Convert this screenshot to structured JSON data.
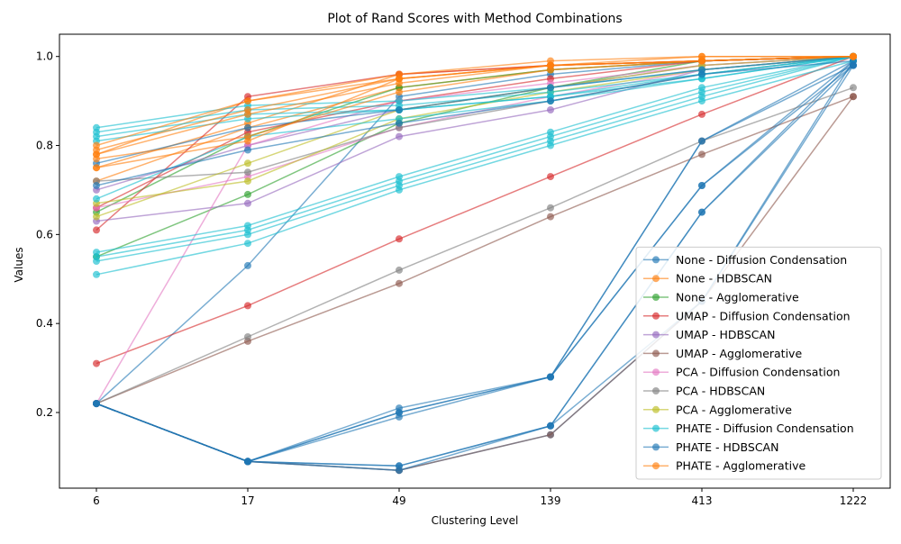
{
  "chart_data": {
    "type": "line",
    "title": "Plot of Rand Scores with Method Combinations",
    "xlabel": "Clustering Level",
    "ylabel": "Values",
    "x": [
      "6",
      "17",
      "49",
      "139",
      "413",
      "1222"
    ],
    "ylim": [
      0.03,
      1.05
    ],
    "yticks": [
      0.2,
      0.4,
      0.6,
      0.8,
      1.0
    ],
    "ytick_labels": [
      "0.2",
      "0.4",
      "0.6",
      "0.8",
      "1.0"
    ],
    "grid": false,
    "legend_position": "lower-right",
    "series": [
      {
        "name": "None - Diffusion Condensation",
        "color": "#1f77b4",
        "runs": [
          [
            0.22,
            0.09,
            0.2,
            0.28,
            0.81,
            0.99
          ],
          [
            0.22,
            0.09,
            0.2,
            0.28,
            0.71,
            0.99
          ],
          [
            0.22,
            0.09,
            0.08,
            0.17,
            0.65,
            0.99
          ],
          [
            0.22,
            0.09,
            0.07,
            0.15,
            0.45,
            0.99
          ],
          [
            0.22,
            0.53,
            0.91,
            0.96,
            0.99,
            1.0
          ]
        ]
      },
      {
        "name": "None - HDBSCAN",
        "color": "#ff7f0e",
        "runs": [
          [
            0.75,
            0.85,
            0.96,
            0.98,
            0.99,
            1.0
          ],
          [
            0.78,
            0.9,
            0.95,
            0.98,
            0.99,
            1.0
          ],
          [
            0.72,
            0.84,
            0.93,
            0.97,
            0.99,
            1.0
          ]
        ]
      },
      {
        "name": "None - Agglomerative",
        "color": "#2ca02c",
        "runs": [
          [
            0.55,
            0.69,
            0.85,
            0.93,
            0.99,
            1.0
          ],
          [
            0.65,
            0.82,
            0.93,
            0.97,
            0.99,
            1.0
          ]
        ]
      },
      {
        "name": "UMAP - Diffusion Condensation",
        "color": "#d62728",
        "runs": [
          [
            0.31,
            0.44,
            0.59,
            0.73,
            0.87,
            1.0
          ],
          [
            0.61,
            0.91,
            0.96,
            0.98,
            0.99,
            1.0
          ],
          [
            0.66,
            0.83,
            0.9,
            0.95,
            0.99,
            1.0
          ]
        ]
      },
      {
        "name": "UMAP - HDBSCAN",
        "color": "#9467bd",
        "runs": [
          [
            0.63,
            0.67,
            0.82,
            0.88,
            0.97,
            1.0
          ],
          [
            0.7,
            0.8,
            0.88,
            0.93,
            0.98,
            1.0
          ]
        ]
      },
      {
        "name": "UMAP - Agglomerative",
        "color": "#8c564b",
        "runs": [
          [
            0.22,
            0.09,
            0.07,
            0.15,
            0.45,
            0.91
          ],
          [
            0.22,
            0.36,
            0.49,
            0.64,
            0.78,
            0.91
          ]
        ]
      },
      {
        "name": "PCA - Diffusion Condensation",
        "color": "#e377c2",
        "runs": [
          [
            0.22,
            0.8,
            0.9,
            0.94,
            0.98,
            1.0
          ],
          [
            0.66,
            0.73,
            0.84,
            0.91,
            0.97,
            1.0
          ]
        ]
      },
      {
        "name": "PCA - HDBSCAN",
        "color": "#7f7f7f",
        "runs": [
          [
            0.22,
            0.37,
            0.52,
            0.66,
            0.81,
            0.93
          ],
          [
            0.72,
            0.74,
            0.84,
            0.9,
            0.96,
            1.0
          ]
        ]
      },
      {
        "name": "PCA - Agglomerative",
        "color": "#bcbd22",
        "runs": [
          [
            0.64,
            0.76,
            0.88,
            0.93,
            0.98,
            1.0
          ],
          [
            0.67,
            0.72,
            0.86,
            0.92,
            0.97,
            1.0
          ]
        ]
      },
      {
        "name": "PHATE - Diffusion Condensation",
        "color": "#17becf",
        "runs": [
          [
            0.84,
            0.89,
            0.9,
            0.93,
            0.97,
            1.0
          ],
          [
            0.83,
            0.88,
            0.89,
            0.92,
            0.96,
            1.0
          ],
          [
            0.82,
            0.87,
            0.88,
            0.91,
            0.96,
            1.0
          ],
          [
            0.81,
            0.86,
            0.88,
            0.91,
            0.95,
            1.0
          ],
          [
            0.56,
            0.62,
            0.73,
            0.83,
            0.93,
            1.0
          ],
          [
            0.55,
            0.61,
            0.72,
            0.82,
            0.92,
            1.0
          ],
          [
            0.54,
            0.6,
            0.71,
            0.81,
            0.91,
            1.0
          ],
          [
            0.51,
            0.58,
            0.7,
            0.8,
            0.9,
            0.99
          ],
          [
            0.68,
            0.82,
            0.86,
            0.9,
            0.95,
            1.0
          ]
        ]
      },
      {
        "name": "PHATE - HDBSCAN",
        "color": "#1f77b4",
        "runs": [
          [
            0.22,
            0.09,
            0.21,
            0.28,
            0.81,
            0.98
          ],
          [
            0.22,
            0.09,
            0.19,
            0.28,
            0.71,
            0.98
          ],
          [
            0.22,
            0.09,
            0.07,
            0.17,
            0.65,
            0.98
          ],
          [
            0.22,
            0.09,
            0.08,
            0.17,
            0.45,
            0.98
          ],
          [
            0.76,
            0.84,
            0.88,
            0.93,
            0.97,
            1.0
          ],
          [
            0.71,
            0.79,
            0.85,
            0.9,
            0.96,
            0.99
          ]
        ]
      },
      {
        "name": "PHATE - Agglomerative",
        "color": "#ff7f0e",
        "runs": [
          [
            0.8,
            0.9,
            0.96,
            0.99,
            1.0,
            1.0
          ],
          [
            0.79,
            0.88,
            0.95,
            0.98,
            0.99,
            1.0
          ],
          [
            0.78,
            0.87,
            0.94,
            0.98,
            0.99,
            1.0
          ],
          [
            0.77,
            0.82,
            0.92,
            0.97,
            0.99,
            1.0
          ],
          [
            0.75,
            0.81,
            0.95,
            0.98,
            1.0,
            1.0
          ]
        ]
      }
    ]
  }
}
